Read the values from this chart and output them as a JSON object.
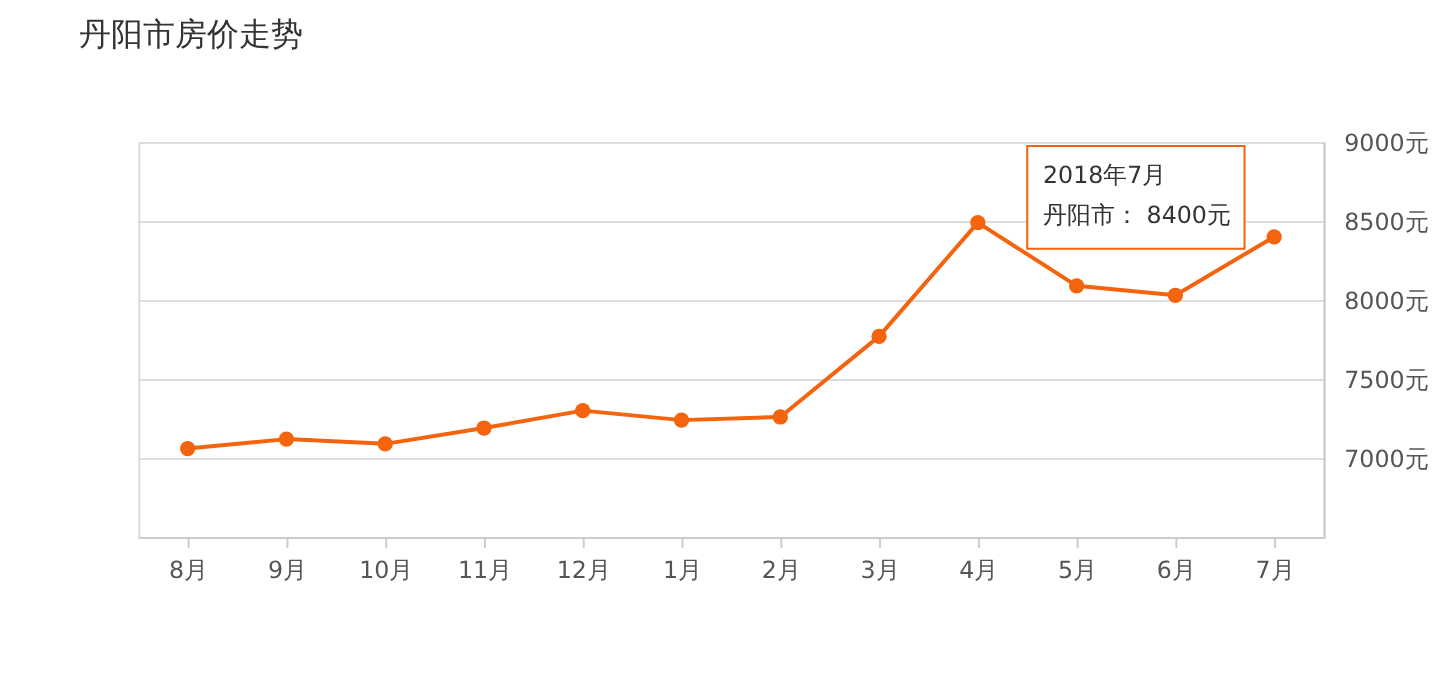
{
  "chart_data": {
    "type": "line",
    "title": "丹阳市房价走势",
    "categories": [
      "8月",
      "9月",
      "10月",
      "11月",
      "12月",
      "1月",
      "2月",
      "3月",
      "4月",
      "5月",
      "6月",
      "7月"
    ],
    "series": [
      {
        "color": "#f4630d",
        "values": [
          7060,
          7120,
          7090,
          7190,
          7300,
          7240,
          7260,
          7770,
          8490,
          8090,
          8030,
          8400
        ]
      }
    ],
    "ylim": [
      6500,
      9000
    ],
    "yticks": [
      {
        "value": 6500,
        "label": null
      },
      {
        "value": 7000,
        "label": "7000元"
      },
      {
        "value": 7500,
        "label": "7500元"
      },
      {
        "value": 8000,
        "label": "8000元"
      },
      {
        "value": 8500,
        "label": "8500元"
      },
      {
        "value": 9000,
        "label": "9000元"
      }
    ],
    "grid": "y",
    "marker": "circle",
    "line_style": "solid",
    "legend": false,
    "annotations": [
      "2018年7月",
      "丹阳市： 8400元"
    ]
  }
}
